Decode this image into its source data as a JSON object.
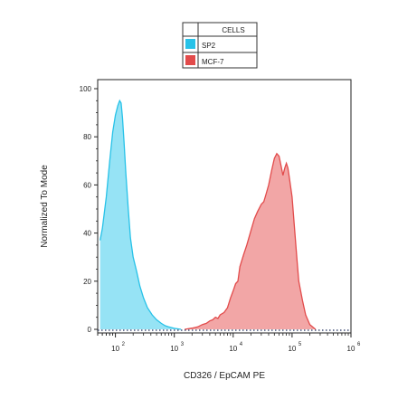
{
  "chart_data": {
    "type": "area",
    "xlabel": "CD326 / EpCAM  PE",
    "ylabel": "Normalized To Mode",
    "x_scale": "log",
    "xlim": [
      50,
      1000000
    ],
    "ylim": [
      0,
      100
    ],
    "x_ticks": [
      {
        "value": 100,
        "base": "10",
        "exp": "2"
      },
      {
        "value": 1000,
        "base": "10",
        "exp": "3"
      },
      {
        "value": 10000,
        "base": "10",
        "exp": "4"
      },
      {
        "value": 100000,
        "base": "10",
        "exp": "5"
      },
      {
        "value": 1000000,
        "base": "10",
        "exp": "6"
      }
    ],
    "y_ticks": [
      "0",
      "20",
      "40",
      "60",
      "80",
      "100"
    ],
    "legend": {
      "header": "CELLS",
      "placement": "top-center"
    },
    "series": [
      {
        "name": "SP2",
        "color": "#27c2e8",
        "fill": "#8be0f4",
        "points": [
          [
            55,
            37
          ],
          [
            60,
            42
          ],
          [
            70,
            55
          ],
          [
            80,
            70
          ],
          [
            90,
            82
          ],
          [
            100,
            89
          ],
          [
            110,
            93
          ],
          [
            118,
            95
          ],
          [
            125,
            94
          ],
          [
            132,
            88
          ],
          [
            140,
            78
          ],
          [
            150,
            65
          ],
          [
            165,
            50
          ],
          [
            180,
            38
          ],
          [
            200,
            30
          ],
          [
            230,
            24
          ],
          [
            260,
            18
          ],
          [
            300,
            13
          ],
          [
            350,
            9
          ],
          [
            420,
            6
          ],
          [
            500,
            4
          ],
          [
            600,
            2.5
          ],
          [
            700,
            1.5
          ],
          [
            800,
            1
          ],
          [
            1000,
            0.4
          ],
          [
            1300,
            0
          ]
        ]
      },
      {
        "name": "MCF-7",
        "color": "#e24b4b",
        "fill": "#f19c9c",
        "points": [
          [
            1500,
            0
          ],
          [
            2000,
            0.5
          ],
          [
            2500,
            1
          ],
          [
            3000,
            2
          ],
          [
            3500,
            2.5
          ],
          [
            4000,
            3.5
          ],
          [
            4500,
            4
          ],
          [
            5000,
            5
          ],
          [
            5500,
            4.5
          ],
          [
            6000,
            6
          ],
          [
            7000,
            7
          ],
          [
            8000,
            9
          ],
          [
            9000,
            13
          ],
          [
            10000,
            16
          ],
          [
            11000,
            19
          ],
          [
            12000,
            20
          ],
          [
            13000,
            26
          ],
          [
            15000,
            31
          ],
          [
            17000,
            35
          ],
          [
            20000,
            41
          ],
          [
            23000,
            46
          ],
          [
            26000,
            49
          ],
          [
            30000,
            52
          ],
          [
            33000,
            53
          ],
          [
            36000,
            56
          ],
          [
            40000,
            60
          ],
          [
            45000,
            66
          ],
          [
            50000,
            71
          ],
          [
            55000,
            73
          ],
          [
            60000,
            72
          ],
          [
            65000,
            68
          ],
          [
            70000,
            64
          ],
          [
            75000,
            67
          ],
          [
            80000,
            69
          ],
          [
            85000,
            67
          ],
          [
            90000,
            63
          ],
          [
            100000,
            55
          ],
          [
            110000,
            42
          ],
          [
            120000,
            30
          ],
          [
            130000,
            20
          ],
          [
            150000,
            12
          ],
          [
            170000,
            6
          ],
          [
            200000,
            2
          ],
          [
            250000,
            0
          ]
        ]
      }
    ]
  }
}
